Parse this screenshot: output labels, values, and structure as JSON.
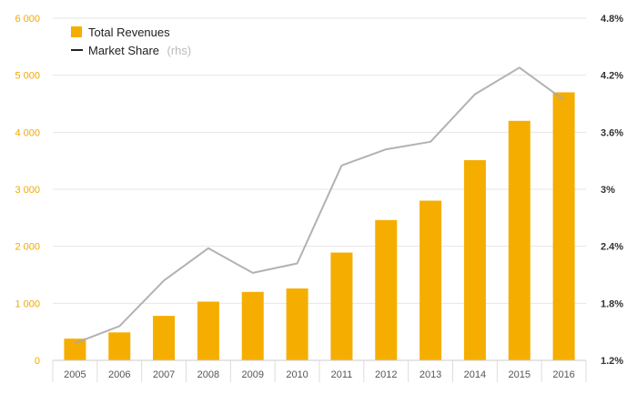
{
  "chart_data": {
    "type": "bar",
    "categories": [
      "2005",
      "2006",
      "2007",
      "2008",
      "2009",
      "2010",
      "2011",
      "2012",
      "2013",
      "2014",
      "2015",
      "2016"
    ],
    "series": [
      {
        "name": "Total Revenues",
        "type": "bar",
        "axis": "left",
        "color": "#f5ae00",
        "values": [
          380,
          490,
          780,
          1030,
          1200,
          1260,
          1890,
          2460,
          2800,
          3510,
          4200,
          4700
        ]
      },
      {
        "name": "Market Share",
        "note": "(rhs)",
        "type": "line",
        "axis": "right",
        "color": "#aaaaaa",
        "values": [
          1.38,
          1.56,
          2.04,
          2.38,
          2.12,
          2.22,
          3.25,
          3.42,
          3.5,
          4.0,
          4.28,
          3.94
        ]
      }
    ],
    "y_left": {
      "min": 0,
      "max": 6000,
      "ticks": [
        0,
        1000,
        2000,
        3000,
        4000,
        5000,
        6000
      ],
      "tick_labels": [
        "0",
        "1 000",
        "2 000",
        "3 000",
        "4 000",
        "5 000",
        "6 000"
      ]
    },
    "y_right": {
      "min": 1.2,
      "max": 4.8,
      "ticks": [
        1.2,
        1.8,
        2.4,
        3.0,
        3.6,
        4.2,
        4.8
      ],
      "tick_labels": [
        "1.2%",
        "1.8%",
        "2.4%",
        "3%",
        "3.6%",
        "4.2%",
        "4.8%"
      ]
    },
    "grid": true,
    "legend_position": "top-left",
    "title": "",
    "xlabel": "",
    "ylabel": ""
  }
}
